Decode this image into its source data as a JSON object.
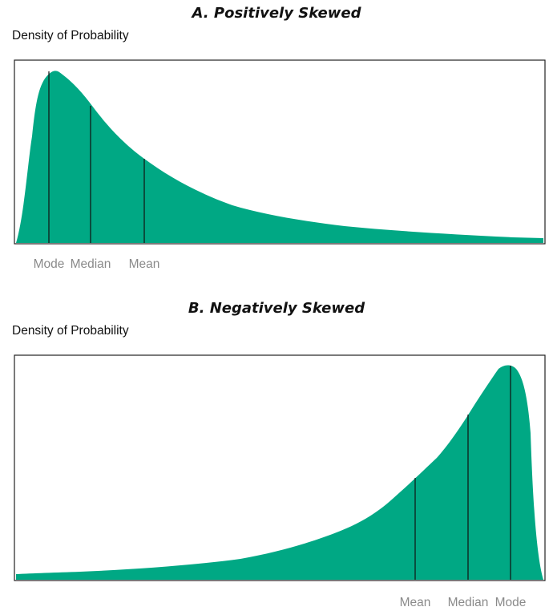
{
  "chart_data": [
    {
      "type": "area",
      "title": "A. Positively Skewed",
      "ylabel": "Density of Probability",
      "xlabel": "",
      "fill_color": "#00a884",
      "curve_y": [
        0,
        0.45,
        0.55,
        0.85,
        0.97,
        1.0,
        0.98,
        0.95,
        0.9,
        0.8,
        0.65,
        0.5,
        0.38,
        0.28,
        0.2,
        0.15,
        0.12,
        0.09,
        0.07,
        0.06,
        0.045,
        0.03
      ],
      "markers": [
        {
          "label": "Mode",
          "height": 1.0
        },
        {
          "label": "Median",
          "height": 0.8
        },
        {
          "label": "Mean",
          "height": 0.5
        }
      ]
    },
    {
      "type": "area",
      "title": "B. Negatively Skewed",
      "ylabel": "Density of Probability",
      "xlabel": "",
      "fill_color": "#00a884",
      "curve_y": [
        0.03,
        0.045,
        0.06,
        0.08,
        0.12,
        0.2,
        0.32,
        0.45,
        0.6,
        0.8,
        0.95,
        1.0,
        0.98,
        0.9,
        0.0
      ],
      "markers": [
        {
          "label": "Mean",
          "height": 0.48
        },
        {
          "label": "Median",
          "height": 0.78
        },
        {
          "label": "Mode",
          "height": 1.0
        }
      ]
    }
  ]
}
